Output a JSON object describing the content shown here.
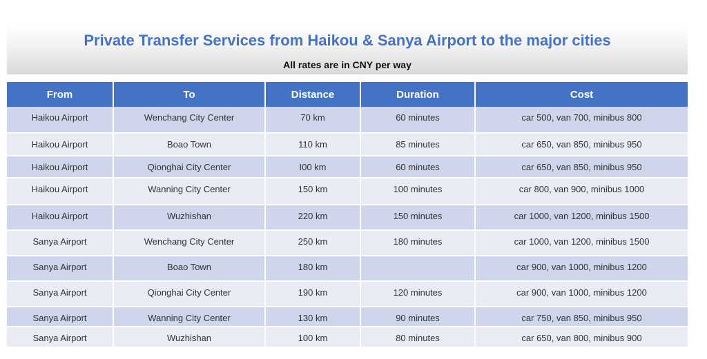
{
  "header": {
    "title": "Private Transfer Services from Haikou & Sanya Airport to the major cities",
    "subtitle": "All rates are in CNY per way"
  },
  "table": {
    "columns": [
      "From",
      "To",
      "Distance",
      "Duration",
      "Cost"
    ],
    "rows": [
      [
        "Haikou Airport",
        "Wenchang City Center",
        "70 km",
        "60 minutes",
        "car 500, van 700, minibus 800"
      ],
      [
        "Haikou Airport",
        "Boao Town",
        "110 km",
        "85 minutes",
        "car 650, van 850, minibus 950"
      ],
      [
        "Haikou Airport",
        "Qionghai City Center",
        "I00 km",
        "60 minutes",
        "car 650, van 850, minibus 950"
      ],
      [
        "Haikou Airport",
        "Wanning City Center",
        "150 km",
        "100 minutes",
        "car 800, van 900, minibus 1000"
      ],
      [
        "Haikou Airport",
        "Wuzhishan",
        "220 km",
        "150 minutes",
        "car 1000, van 1200, minibus 1500"
      ],
      [
        "Sanya Airport",
        "Wenchang City Center",
        "250 km",
        "180 minutes",
        "car 1000, van 1200, minibus 1500"
      ],
      [
        "Sanya Airport",
        "Boao Town",
        "180 km",
        "",
        "car 900, van 1000, minibus 1200"
      ],
      [
        "Sanya Airport",
        "Qionghai City Center",
        "190 km",
        "120 minutes",
        "car 900, van 1000, minibus 1200"
      ],
      [
        "Sanya Airport",
        "Wanning City Center",
        "130 km",
        "90 minutes",
        "car 750, van 850, minibus 950"
      ],
      [
        "Sanya Airport",
        "Wuzhishan",
        "100 km",
        "80 minutes",
        "car 650, van 800, minibus 900"
      ]
    ]
  },
  "colors": {
    "title": "#4472c4",
    "header_fill": "#4472c4",
    "row_band_dark": "#cfd5ea",
    "row_band_light": "#e9ebf5"
  }
}
